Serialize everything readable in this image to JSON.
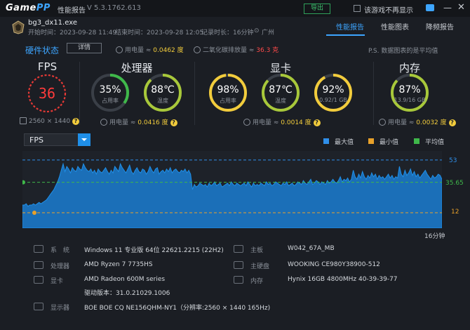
{
  "app": {
    "logo_a": "Game",
    "logo_b": "PP",
    "title": "性能报告",
    "version": "V 5.3.1762.613",
    "export_label": "导出",
    "no_show_label": "该游戏不再显示"
  },
  "session": {
    "exe": "bg3_dx11.exe",
    "start": "开始时间：2023-09-28 11:49",
    "end": "结束时间：2023-09-28 12:05",
    "duration": "记录时长：16分钟",
    "location": "广州"
  },
  "tabs": [
    {
      "label": "性能报告",
      "active": true
    },
    {
      "label": "性能图表",
      "active": false
    },
    {
      "label": "降频报告",
      "active": false
    }
  ],
  "summary": {
    "title": "硬件状态",
    "detail_label": "详情",
    "power_label": "用电量 ≈",
    "power_value": "0.0462 度",
    "co2_label": "二氧化碳排放量 ≈",
    "co2_value": "36.3 克",
    "note": "P.S. 数据图表的是平均值"
  },
  "fps": {
    "title": "FPS",
    "value": "36",
    "resolution": "2560 × 1440",
    "q": "?"
  },
  "cpu": {
    "title": "处理器",
    "usage_value": "35%",
    "usage_label": "占用率",
    "usage_pct": 35,
    "temp_value": "88℃",
    "temp_label": "温度",
    "temp_pct": 88,
    "power_label": "用电量 ≈",
    "power_value": "0.0416 度"
  },
  "gpu": {
    "title": "显卡",
    "usage_value": "98%",
    "usage_label": "占用率",
    "usage_pct": 98,
    "temp_value": "87℃",
    "temp_label": "温度",
    "temp_pct": 87,
    "vram_value": "92%",
    "vram_label": "0.92/1 GB",
    "vram_pct": 92,
    "power_label": "用电量 ≈",
    "power_value": "0.0014 度"
  },
  "memory": {
    "title": "内存",
    "usage_value": "87%",
    "usage_label": "13.9/16 GB",
    "usage_pct": 87,
    "power_label": "用电量 ≈",
    "power_value": "0.0032 度"
  },
  "chart_controls": {
    "metric": "FPS",
    "legend": [
      {
        "label": "最大值",
        "color": "#2f8fea"
      },
      {
        "label": "最小值",
        "color": "#e8a12a"
      },
      {
        "label": "平均值",
        "color": "#3fb84a"
      }
    ]
  },
  "chart_data": {
    "type": "area",
    "series_color": "#1f8fe8",
    "duration_label": "16分钟",
    "max": 53,
    "avg": 35.65,
    "min": 12,
    "max_label": "53",
    "avg_label": "35.65",
    "min_label": "12",
    "ylim": [
      0,
      60
    ],
    "values": [
      18,
      18,
      19,
      17,
      18,
      18,
      19,
      18,
      19,
      20,
      19,
      20,
      21,
      22,
      24,
      26,
      28,
      30,
      33,
      36,
      40,
      45,
      50,
      44,
      48,
      46,
      43,
      47,
      45,
      44,
      48,
      46,
      45,
      50,
      47,
      45,
      44,
      46,
      43,
      45,
      42,
      46,
      44,
      43,
      45,
      47,
      44,
      42,
      45,
      43,
      48,
      46,
      44,
      50,
      47,
      45,
      43,
      46,
      49,
      44,
      42,
      45,
      47,
      44,
      43,
      46,
      45,
      42,
      44,
      48,
      45,
      43,
      46,
      47,
      42,
      44,
      45,
      43,
      46,
      44,
      47,
      43,
      45,
      46,
      44,
      43,
      45,
      44,
      46,
      43,
      45,
      42,
      30,
      34,
      32,
      33,
      35,
      34,
      33,
      34,
      32,
      35,
      33,
      34,
      36,
      33,
      34,
      35,
      32,
      33,
      34,
      35,
      33,
      36,
      34,
      33,
      35,
      34,
      33,
      34,
      35,
      33,
      36,
      34,
      32,
      35,
      33,
      34,
      33,
      35,
      34,
      33,
      36,
      34,
      35,
      33,
      34,
      36,
      35,
      34,
      33,
      35,
      34,
      36,
      33,
      34,
      35,
      33,
      34,
      36,
      35,
      34,
      37,
      35,
      34,
      36,
      38,
      34,
      35,
      37,
      36,
      34,
      36,
      35,
      34,
      37,
      35,
      36,
      38,
      36,
      35,
      37,
      40,
      36,
      38,
      37,
      39,
      36,
      38,
      45,
      40,
      38,
      42,
      39,
      44,
      40,
      38,
      41,
      39,
      43,
      40,
      42,
      38,
      41,
      39,
      40,
      38,
      40,
      42,
      39,
      41,
      38,
      40,
      39,
      48,
      42,
      40,
      45,
      41,
      43,
      46,
      41,
      44,
      40,
      42,
      39,
      41,
      43,
      45,
      42,
      40,
      38,
      41,
      39,
      40,
      42,
      41,
      38
    ]
  },
  "sysinfo": {
    "os_label": "系　统",
    "os": "Windows 11 专业版 64位 22621.2215 (22H2)",
    "cpu_label": "处理器",
    "cpu": "AMD Ryzen 7 7735HS",
    "gpu_label": "显卡",
    "gpu": "AMD Radeon 600M series",
    "driver": "驱动版本：31.0.21029.1006",
    "monitor_label": "显示器",
    "monitor": "BOE BOE CQ NE156QHM-NY1（分辨率:2560 × 1440 165Hz)",
    "board_label": "主板",
    "board": "W042_67A_MB",
    "disk_label": "主硬盘",
    "disk": "WOOKING CE980Y38900-512",
    "mem_label": "内存",
    "mem": "Hynix 16GB 4800MHz 40-39-39-77"
  }
}
